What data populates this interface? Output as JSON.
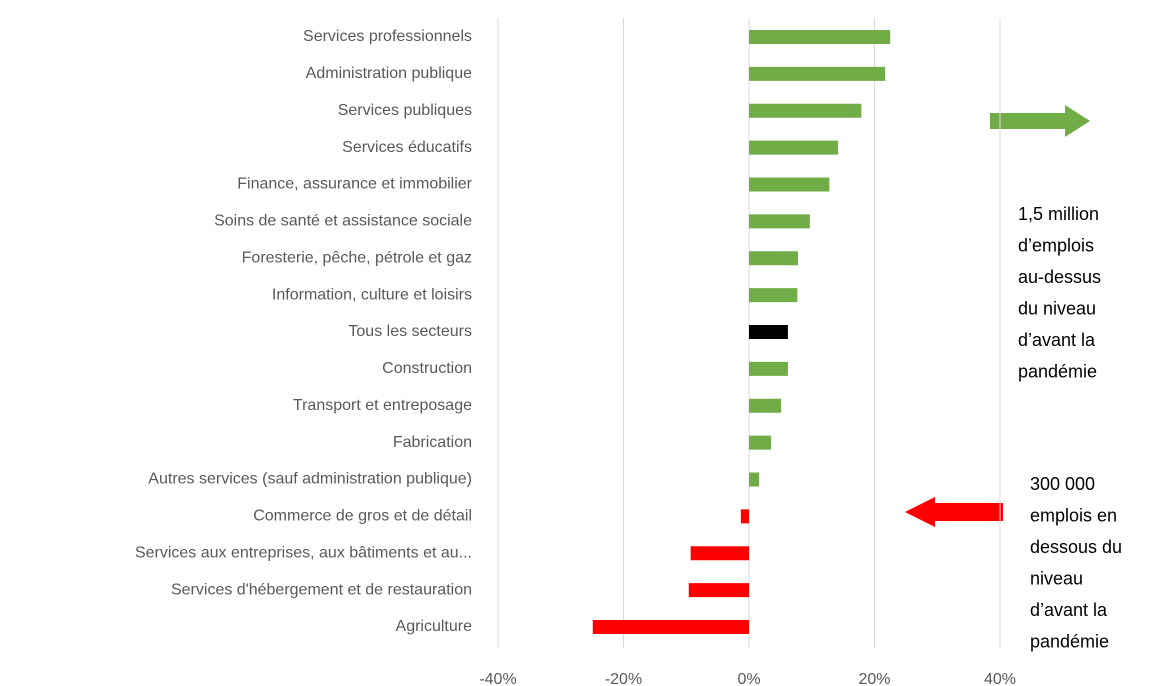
{
  "chart_data": {
    "type": "bar",
    "orientation": "horizontal",
    "categories": [
      "Services professionnels",
      "Administration publique",
      "Services publiques",
      "Services éducatifs",
      "Finance, assurance et immobilier",
      "Soins de santé et assistance sociale",
      "Foresterie, pêche, pétrole et gaz",
      "Information, culture et loisirs",
      "Tous les secteurs",
      "Construction",
      "Transport et entreposage",
      "Fabrication",
      "Autres services (sauf administration publique)",
      "Commerce de gros et de détail",
      "Services aux entreprises, aux bâtiments et au...",
      "Services d'hébergement et de restauration",
      "Agriculture"
    ],
    "values": [
      22.5,
      21.7,
      17.9,
      14.2,
      12.8,
      9.7,
      7.8,
      7.7,
      6.2,
      6.2,
      5.1,
      3.5,
      1.6,
      -1.3,
      -9.3,
      -9.6,
      -24.9
    ],
    "colors": [
      "#70ad47",
      "#70ad47",
      "#70ad47",
      "#70ad47",
      "#70ad47",
      "#70ad47",
      "#70ad47",
      "#70ad47",
      "#000000",
      "#70ad47",
      "#70ad47",
      "#70ad47",
      "#70ad47",
      "#ff0000",
      "#ff0000",
      "#ff0000",
      "#ff0000"
    ],
    "xlim": [
      -40,
      40
    ],
    "xticks": [
      {
        "value": -40,
        "label": "-40%"
      },
      {
        "value": -20,
        "label": "-20%"
      },
      {
        "value": 0,
        "label": "0%"
      },
      {
        "value": 20,
        "label": "20%"
      },
      {
        "value": 40,
        "label": "40%"
      }
    ],
    "grid": true,
    "annotations": [
      {
        "lines": [
          "1,5 million",
          "d’emplois",
          "au-dessus",
          "du niveau",
          "d’avant la",
          "pandémie"
        ]
      },
      {
        "lines": [
          "300 000",
          "emplois en",
          "dessous du",
          "niveau",
          "d’avant la",
          "pandémie"
        ]
      }
    ]
  }
}
